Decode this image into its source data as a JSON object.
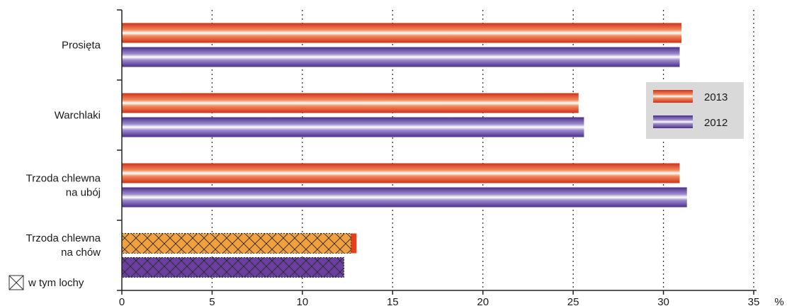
{
  "chart_data": {
    "type": "bar",
    "orientation": "horizontal",
    "categories": [
      [
        "Prosięta"
      ],
      [
        "Warchlaki"
      ],
      [
        "Trzoda chlewna",
        "na ubój"
      ],
      [
        "Trzoda chlewna",
        "na chów"
      ]
    ],
    "series": [
      {
        "name": "2013",
        "values": [
          31.0,
          25.3,
          30.9,
          13.0
        ],
        "color": "#e8401c"
      },
      {
        "name": "2012",
        "values": [
          30.9,
          25.6,
          31.3,
          12.3
        ],
        "color": "#5b3d9c"
      }
    ],
    "subseries": {
      "name": "w tym lochy",
      "values": {
        "2013": 12.7,
        "2012": 12.3
      },
      "category_index": 3,
      "hatched": true,
      "color_2013": "#f0a040",
      "color_2012": "#6a3fa0"
    },
    "xlim": [
      0,
      35
    ],
    "x_ticks": [
      0,
      5,
      10,
      15,
      20,
      25,
      30,
      35
    ],
    "unit_label": "%",
    "grid": "vertical dotted",
    "legend": {
      "position": "right",
      "entries": [
        "2013",
        "2012"
      ]
    }
  }
}
